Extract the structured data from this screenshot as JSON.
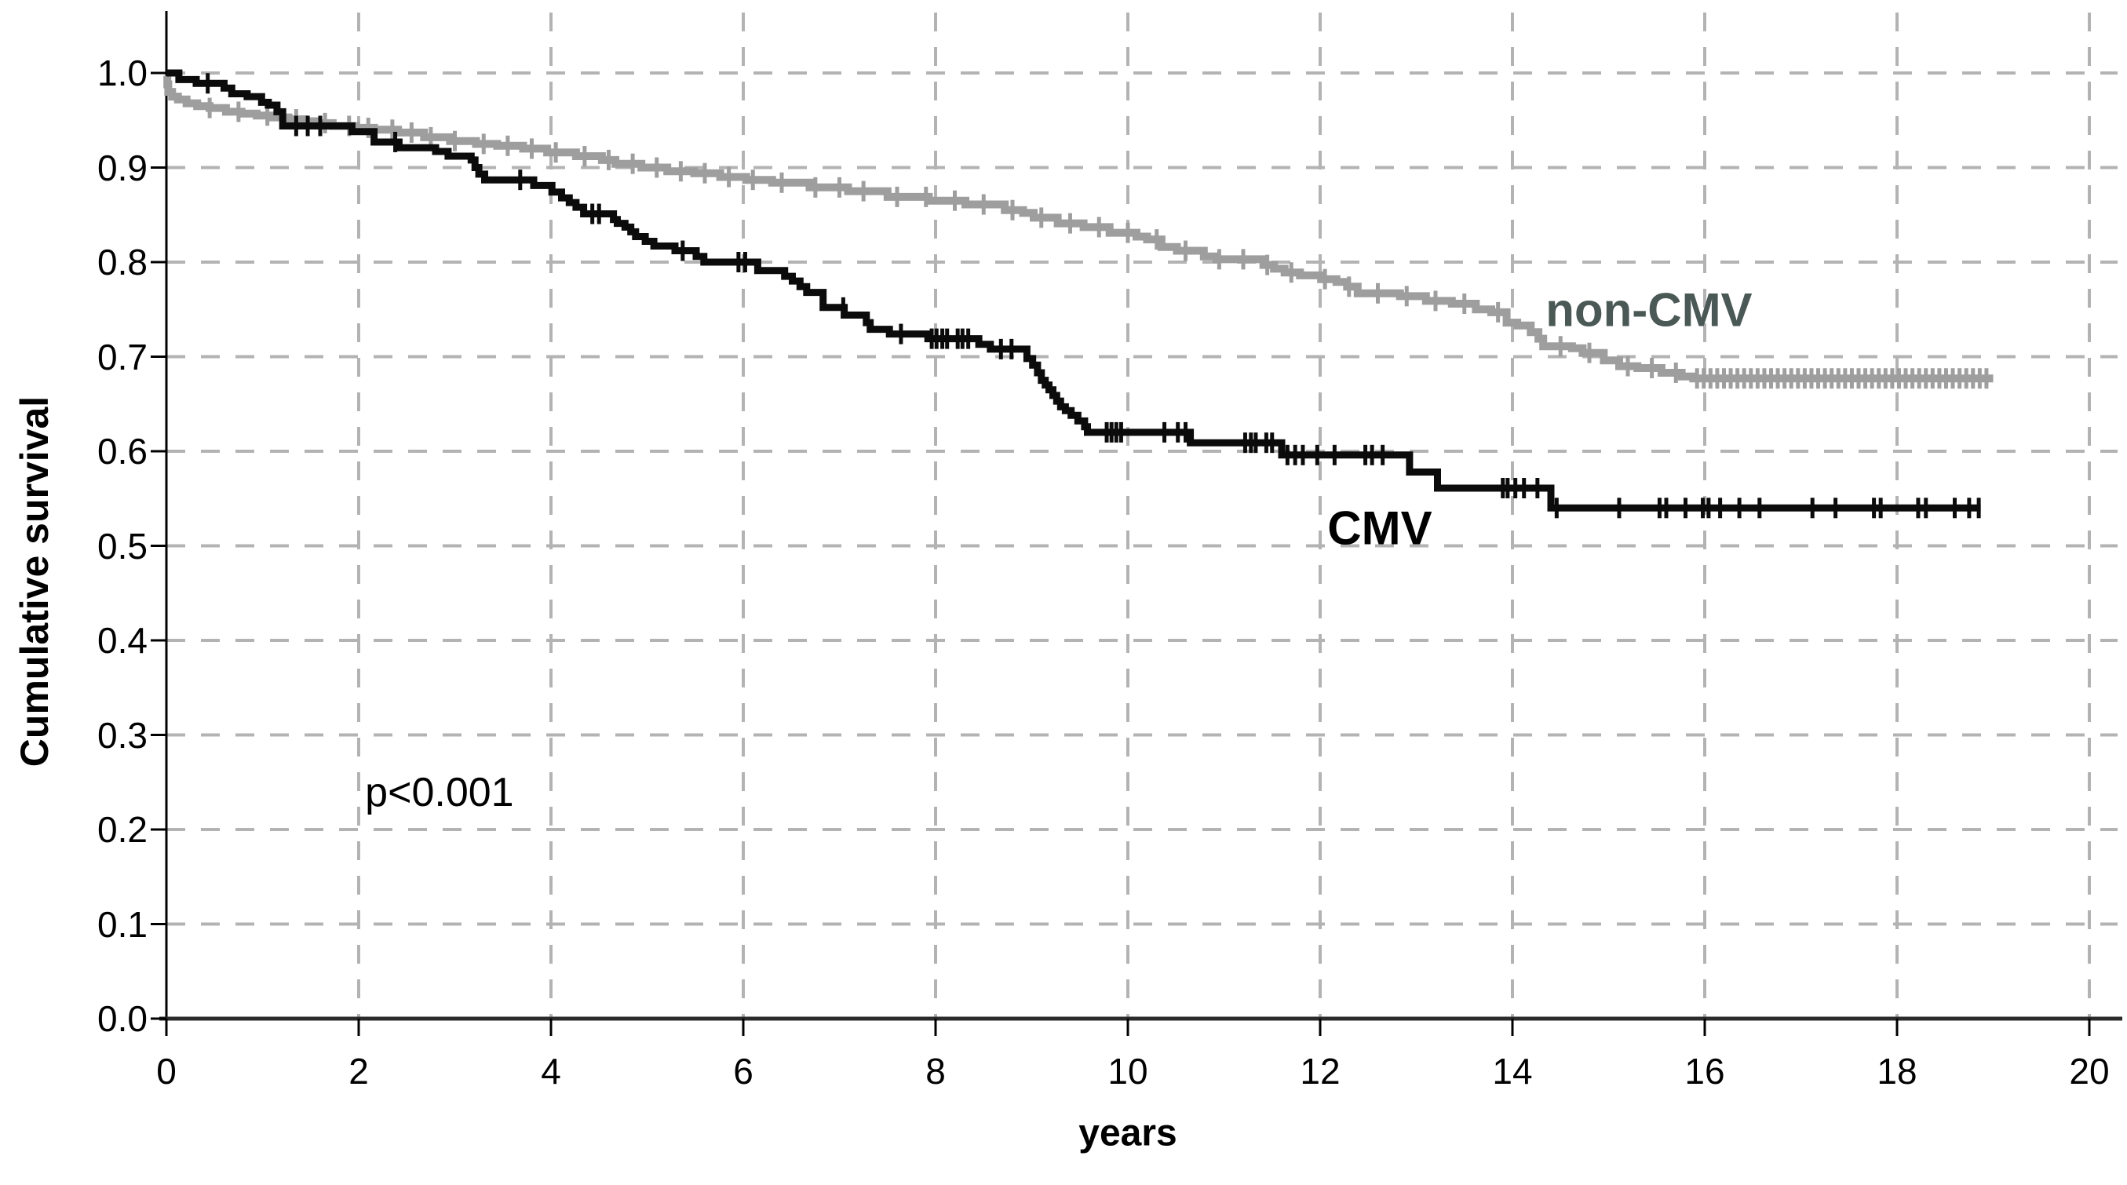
{
  "figure": {
    "background": "#ffffff",
    "grid_color": "#b3b3b3",
    "axis_color": "#1a1a1a"
  },
  "labels": {
    "x_axis_title": "years",
    "y_axis_title": "Cumulative survival",
    "p_value": "p<0.001",
    "series_cmv": "CMV",
    "series_noncmv": "non-CMV"
  },
  "chart_data": {
    "type": "line",
    "subtype": "kaplan-meier-step",
    "title": "",
    "xlabel": "years",
    "ylabel": "Cumulative survival",
    "xlim": [
      0,
      20
    ],
    "ylim": [
      0.0,
      1.0
    ],
    "x_ticks": [
      0,
      2,
      4,
      6,
      8,
      10,
      12,
      14,
      16,
      18,
      20
    ],
    "x_tick_labels": [
      "0",
      "2",
      "4",
      "6",
      "8",
      "10",
      "12",
      "14",
      "16",
      "18",
      "20"
    ],
    "y_ticks": [
      0.0,
      0.1,
      0.2,
      0.3,
      0.4,
      0.5,
      0.6,
      0.7,
      0.8,
      0.9,
      1.0
    ],
    "y_tick_labels": [
      "0.0",
      "0.1",
      "0.2",
      "0.3",
      "0.4",
      "0.5",
      "0.6",
      "0.7",
      "0.8",
      "0.9",
      "1.0"
    ],
    "grid": {
      "show": true,
      "style": "dashed",
      "h_every": 0.1,
      "v_every": 2
    },
    "legend_position": "inline-labels",
    "annotation": {
      "text": "p<0.001",
      "x": 2.84,
      "y": 0.239
    },
    "series": [
      {
        "name": "CMV",
        "label": "CMV",
        "color": "#0b0b0b",
        "label_color": "#000000",
        "label_pos": {
          "x": 12.62,
          "y": 0.519
        },
        "end_x": 18.87,
        "steps": [
          [
            0,
            1.0
          ],
          [
            0.13,
            0.993
          ],
          [
            0.31,
            0.989
          ],
          [
            0.6,
            0.984
          ],
          [
            0.68,
            0.978
          ],
          [
            0.84,
            0.975
          ],
          [
            0.99,
            0.969
          ],
          [
            1.06,
            0.966
          ],
          [
            1.15,
            0.959
          ],
          [
            1.21,
            0.944
          ],
          [
            1.93,
            0.938
          ],
          [
            2.16,
            0.927
          ],
          [
            2.42,
            0.921
          ],
          [
            2.8,
            0.917
          ],
          [
            2.93,
            0.912
          ],
          [
            3.17,
            0.908
          ],
          [
            3.21,
            0.9
          ],
          [
            3.25,
            0.893
          ],
          [
            3.31,
            0.887
          ],
          [
            3.82,
            0.881
          ],
          [
            4.01,
            0.874
          ],
          [
            4.11,
            0.868
          ],
          [
            4.19,
            0.863
          ],
          [
            4.26,
            0.858
          ],
          [
            4.34,
            0.851
          ],
          [
            4.65,
            0.845
          ],
          [
            4.69,
            0.841
          ],
          [
            4.77,
            0.837
          ],
          [
            4.83,
            0.832
          ],
          [
            4.88,
            0.827
          ],
          [
            4.98,
            0.822
          ],
          [
            5.07,
            0.817
          ],
          [
            5.29,
            0.812
          ],
          [
            5.51,
            0.806
          ],
          [
            5.59,
            0.8
          ],
          [
            6.15,
            0.791
          ],
          [
            6.43,
            0.785
          ],
          [
            6.51,
            0.78
          ],
          [
            6.59,
            0.774
          ],
          [
            6.66,
            0.768
          ],
          [
            6.83,
            0.752
          ],
          [
            7.05,
            0.744
          ],
          [
            7.28,
            0.736
          ],
          [
            7.32,
            0.729
          ],
          [
            7.52,
            0.724
          ],
          [
            7.92,
            0.719
          ],
          [
            8.45,
            0.713
          ],
          [
            8.57,
            0.708
          ],
          [
            8.95,
            0.698
          ],
          [
            9.01,
            0.691
          ],
          [
            9.06,
            0.683
          ],
          [
            9.1,
            0.675
          ],
          [
            9.14,
            0.67
          ],
          [
            9.18,
            0.665
          ],
          [
            9.22,
            0.659
          ],
          [
            9.26,
            0.653
          ],
          [
            9.3,
            0.647
          ],
          [
            9.35,
            0.643
          ],
          [
            9.41,
            0.638
          ],
          [
            9.48,
            0.632
          ],
          [
            9.55,
            0.626
          ],
          [
            9.58,
            0.62
          ],
          [
            10.65,
            0.609
          ],
          [
            11.6,
            0.596
          ],
          [
            12.93,
            0.578
          ],
          [
            13.22,
            0.561
          ],
          [
            14.4,
            0.54
          ]
        ],
        "censors": [
          0.43,
          1.35,
          1.47,
          1.6,
          2.38,
          3.68,
          4.43,
          4.5,
          5.37,
          5.95,
          6.02,
          7.04,
          7.64,
          7.96,
          8.01,
          8.07,
          8.12,
          8.23,
          8.28,
          8.34,
          8.68,
          8.79,
          9.78,
          9.83,
          9.88,
          9.93,
          10.38,
          10.52,
          10.6,
          11.22,
          11.28,
          11.33,
          11.44,
          11.5,
          11.66,
          11.74,
          11.82,
          11.97,
          12.15,
          12.47,
          12.54,
          12.65,
          13.9,
          13.95,
          14.03,
          14.12,
          14.26,
          14.46,
          15.11,
          15.53,
          15.6,
          15.8,
          15.98,
          16.04,
          16.16,
          16.36,
          16.57,
          17.12,
          17.36,
          17.76,
          17.83,
          18.22,
          18.3,
          18.6,
          18.75,
          18.85
        ]
      },
      {
        "name": "non-CMV",
        "label": "non-CMV",
        "color": "#9e9e9e",
        "label_color": "#4a5955",
        "label_pos": {
          "x": 15.42,
          "y": 0.749
        },
        "end_x": 19.0,
        "steps": [
          [
            0,
            0.997
          ],
          [
            0.01,
            0.988
          ],
          [
            0.02,
            0.98
          ],
          [
            0.06,
            0.975
          ],
          [
            0.12,
            0.972
          ],
          [
            0.21,
            0.968
          ],
          [
            0.32,
            0.965
          ],
          [
            0.45,
            0.963
          ],
          [
            0.62,
            0.959
          ],
          [
            0.78,
            0.957
          ],
          [
            0.94,
            0.955
          ],
          [
            1.11,
            0.953
          ],
          [
            1.27,
            0.951
          ],
          [
            1.43,
            0.949
          ],
          [
            1.57,
            0.947
          ],
          [
            1.73,
            0.944
          ],
          [
            1.97,
            0.942
          ],
          [
            2.16,
            0.94
          ],
          [
            2.41,
            0.937
          ],
          [
            2.68,
            0.932
          ],
          [
            2.95,
            0.928
          ],
          [
            3.22,
            0.925
          ],
          [
            3.44,
            0.923
          ],
          [
            3.71,
            0.92
          ],
          [
            3.96,
            0.916
          ],
          [
            4.26,
            0.912
          ],
          [
            4.53,
            0.908
          ],
          [
            4.67,
            0.904
          ],
          [
            4.94,
            0.9
          ],
          [
            5.21,
            0.896
          ],
          [
            5.49,
            0.894
          ],
          [
            5.76,
            0.89
          ],
          [
            6.03,
            0.887
          ],
          [
            6.3,
            0.884
          ],
          [
            6.69,
            0.879
          ],
          [
            7.09,
            0.875
          ],
          [
            7.5,
            0.869
          ],
          [
            7.93,
            0.865
          ],
          [
            8.31,
            0.861
          ],
          [
            8.72,
            0.855
          ],
          [
            8.91,
            0.852
          ],
          [
            9.02,
            0.847
          ],
          [
            9.27,
            0.841
          ],
          [
            9.54,
            0.837
          ],
          [
            9.81,
            0.831
          ],
          [
            10.09,
            0.827
          ],
          [
            10.2,
            0.824
          ],
          [
            10.35,
            0.816
          ],
          [
            10.51,
            0.812
          ],
          [
            10.79,
            0.806
          ],
          [
            10.92,
            0.803
          ],
          [
            11.41,
            0.797
          ],
          [
            11.52,
            0.793
          ],
          [
            11.63,
            0.789
          ],
          [
            11.79,
            0.786
          ],
          [
            12.01,
            0.782
          ],
          [
            12.17,
            0.779
          ],
          [
            12.28,
            0.774
          ],
          [
            12.39,
            0.767
          ],
          [
            12.83,
            0.764
          ],
          [
            13.1,
            0.759
          ],
          [
            13.37,
            0.756
          ],
          [
            13.62,
            0.75
          ],
          [
            13.78,
            0.747
          ],
          [
            13.94,
            0.736
          ],
          [
            14.05,
            0.733
          ],
          [
            14.19,
            0.726
          ],
          [
            14.27,
            0.719
          ],
          [
            14.32,
            0.711
          ],
          [
            14.62,
            0.709
          ],
          [
            14.73,
            0.704
          ],
          [
            14.95,
            0.696
          ],
          [
            15.11,
            0.69
          ],
          [
            15.3,
            0.688
          ],
          [
            15.55,
            0.683
          ],
          [
            15.76,
            0.679
          ],
          [
            15.88,
            0.677
          ]
        ],
        "censors": [
          0.45,
          0.75,
          1.05,
          1.35,
          1.65,
          1.9,
          2.1,
          2.35,
          2.55,
          2.75,
          3.0,
          3.3,
          3.55,
          3.8,
          4.05,
          4.35,
          4.6,
          4.85,
          5.1,
          5.35,
          5.6,
          5.85,
          6.1,
          6.4,
          6.75,
          7.0,
          7.25,
          7.6,
          7.9,
          8.2,
          8.5,
          8.8,
          9.1,
          9.4,
          9.7,
          10.0,
          10.3,
          10.6,
          10.95,
          11.2,
          11.45,
          11.7,
          12.05,
          12.3,
          12.6,
          12.9,
          13.2,
          13.5,
          13.85,
          14.5,
          14.8,
          15.2,
          15.45,
          15.7
        ],
        "censors_dense": {
          "from": 15.92,
          "to": 18.98,
          "step": 0.07
        }
      }
    ]
  }
}
